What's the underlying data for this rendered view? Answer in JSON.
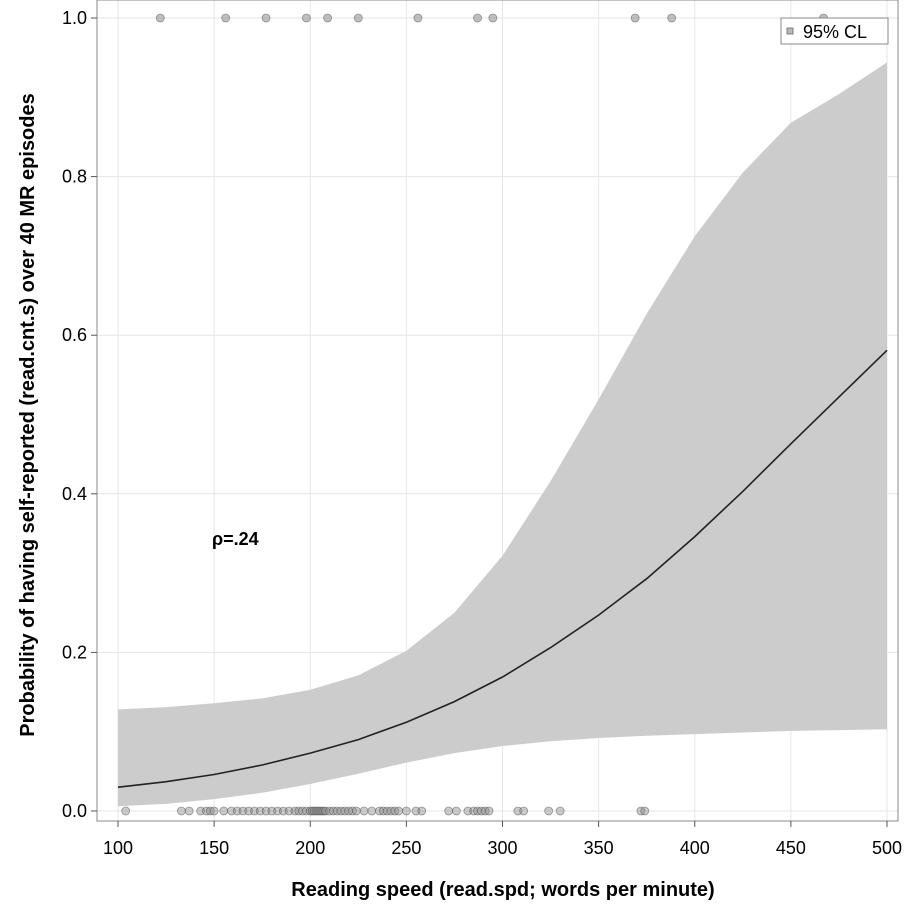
{
  "chart_data": {
    "type": "line",
    "xlabel": "Reading speed (read.spd; words per minute)",
    "ylabel": "Probability of having self-reported (read.cnt.s) over 40 MR episodes",
    "xlim": [
      100,
      500
    ],
    "ylim": [
      0,
      1
    ],
    "xticks": [
      100,
      150,
      200,
      250,
      300,
      350,
      400,
      450,
      500
    ],
    "yticks": [
      0.0,
      0.2,
      0.4,
      0.6,
      0.8,
      1.0
    ],
    "ytick_labels": [
      "0.0",
      "0.2",
      "0.4",
      "0.6",
      "0.8",
      "1.0"
    ],
    "grid": true,
    "legend": {
      "label": "95% CL",
      "placement": "top-right"
    },
    "annotation": "ρ=.24",
    "fit_line": {
      "x": [
        100,
        125,
        150,
        175,
        200,
        225,
        250,
        275,
        300,
        325,
        350,
        375,
        400,
        425,
        450,
        475,
        500
      ],
      "y": [
        0.03,
        0.037,
        0.046,
        0.058,
        0.073,
        0.09,
        0.112,
        0.138,
        0.169,
        0.206,
        0.247,
        0.293,
        0.346,
        0.403,
        0.463,
        0.522,
        0.581
      ]
    },
    "confidence_band": {
      "x": [
        100,
        125,
        150,
        175,
        200,
        225,
        250,
        275,
        300,
        325,
        350,
        375,
        400,
        425,
        450,
        475,
        500
      ],
      "lower": [
        0.006,
        0.009,
        0.015,
        0.023,
        0.034,
        0.047,
        0.061,
        0.073,
        0.082,
        0.088,
        0.092,
        0.095,
        0.097,
        0.099,
        0.101,
        0.102,
        0.103
      ],
      "upper": [
        0.128,
        0.131,
        0.136,
        0.142,
        0.153,
        0.171,
        0.202,
        0.25,
        0.322,
        0.416,
        0.519,
        0.627,
        0.725,
        0.805,
        0.868,
        0.904,
        0.944
      ]
    },
    "points_y1": [
      122,
      156,
      177,
      198,
      209,
      225,
      256,
      287,
      295,
      369,
      388,
      467
    ],
    "points_y0": [
      104,
      133,
      137,
      143,
      146,
      148,
      150,
      155,
      159,
      162,
      165,
      168,
      171,
      174,
      177,
      180,
      183,
      186,
      189,
      192,
      194,
      196,
      198,
      200,
      201,
      202,
      203,
      204,
      205,
      206,
      207,
      208,
      210,
      212,
      214,
      216,
      218,
      220,
      222,
      224,
      228,
      232,
      236,
      238,
      240,
      242,
      244,
      246,
      250,
      255,
      258,
      272,
      276,
      282,
      285,
      287,
      289,
      291,
      293,
      308,
      311,
      324,
      330,
      372,
      374
    ]
  }
}
